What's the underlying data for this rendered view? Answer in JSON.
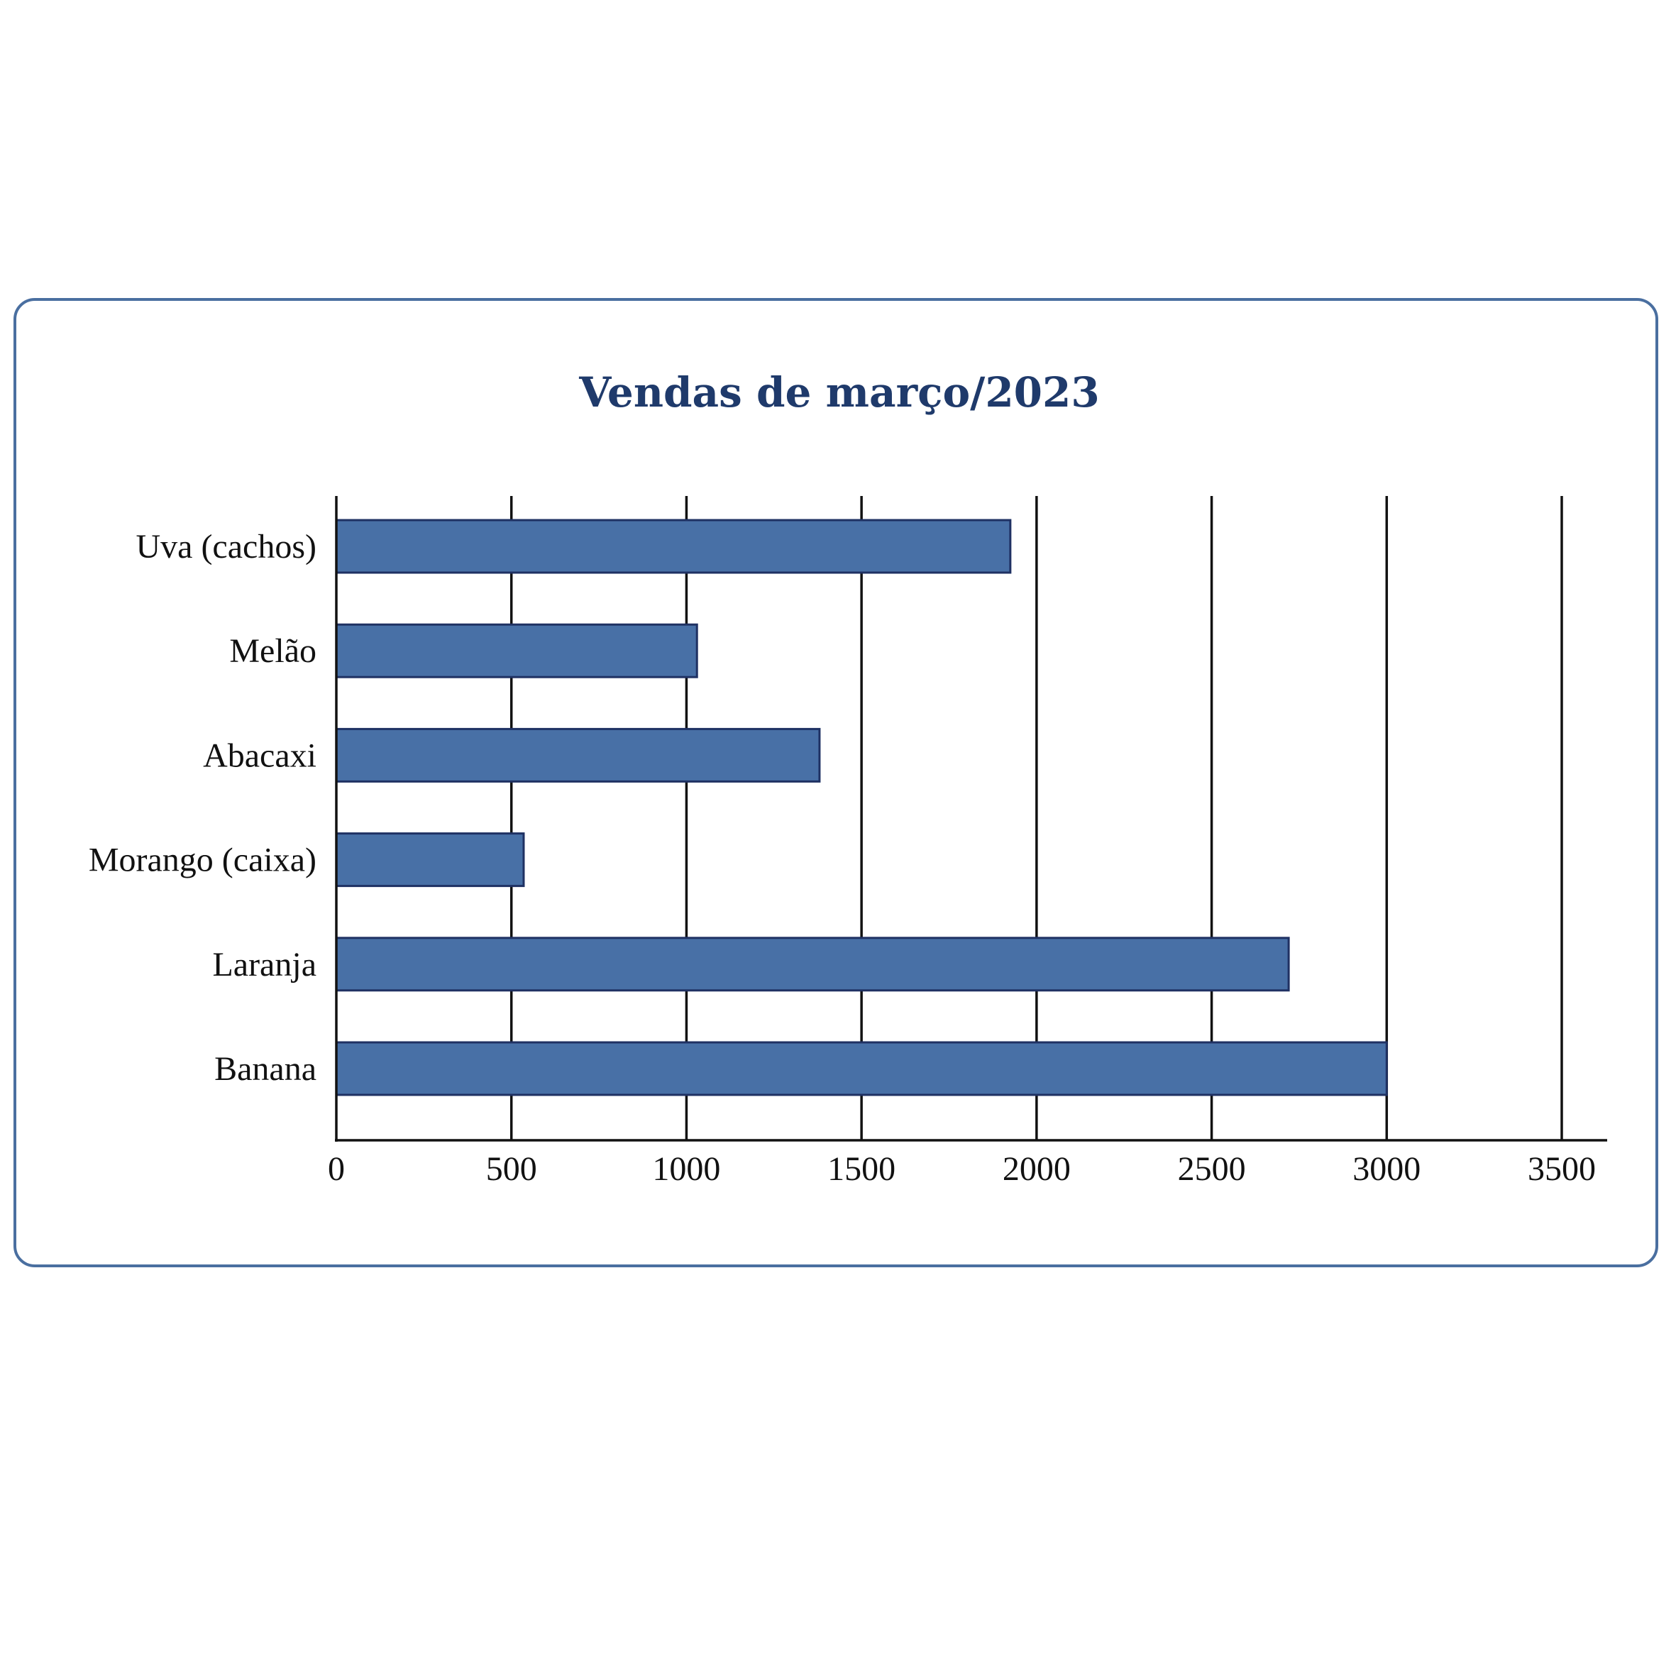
{
  "chart_data": {
    "type": "bar",
    "orientation": "horizontal",
    "title": "Vendas de março/2023",
    "xlabel": "",
    "ylabel": "",
    "categories": [
      "Uva (cachos)",
      "Melão",
      "Abacaxi",
      "Morango (caixa)",
      "Laranja",
      "Banana"
    ],
    "values": [
      1925,
      1030,
      1380,
      535,
      2720,
      3000
    ],
    "xlim": [
      0,
      3500
    ],
    "xticks": [
      "0",
      "500",
      "1000",
      "1500",
      "2000",
      "2500",
      "3000",
      "3500"
    ],
    "grid": "vertical",
    "legend": "none",
    "bar_color": "#4870a6",
    "bar_edge_color": "#1f3163",
    "title_color": "#1f3a6b",
    "frame_color": "#4a6fa0"
  }
}
